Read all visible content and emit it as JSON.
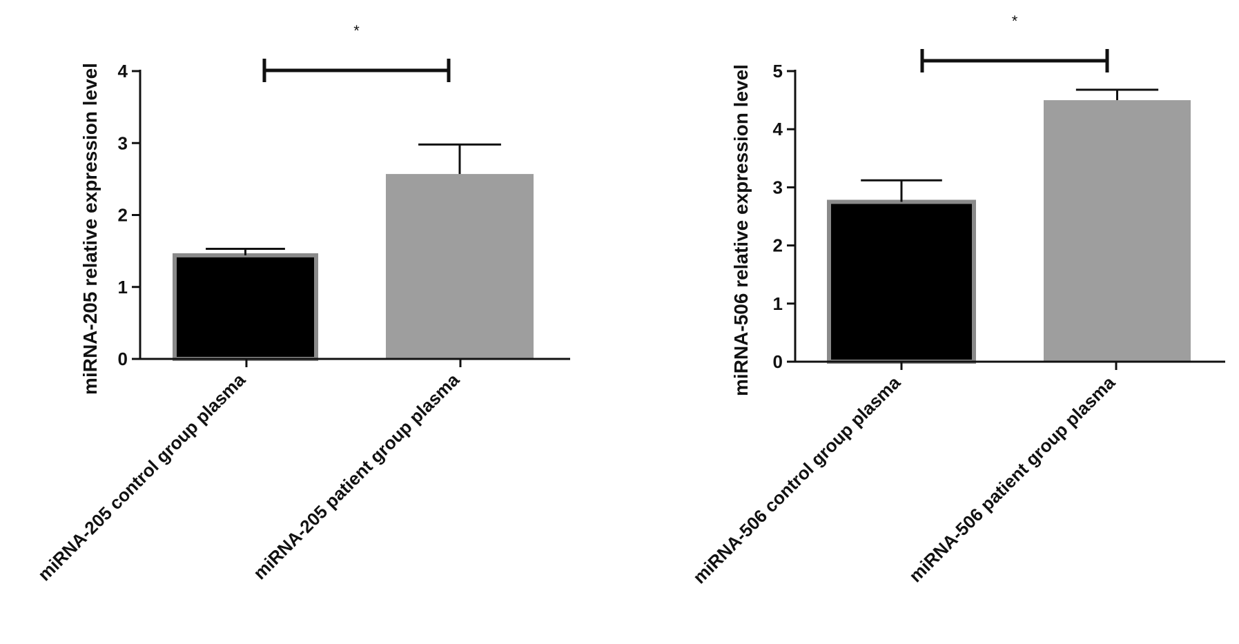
{
  "chart_data": [
    {
      "type": "bar",
      "categories": [
        "miRNA-205  control group plasma",
        "miRNA-205 patient group plasma"
      ],
      "values": [
        1.44,
        2.57
      ],
      "errors": [
        0.09,
        0.41
      ],
      "bar_colors": [
        "#000000",
        "#9e9e9e"
      ],
      "bar_outline": "#8a8a8a",
      "ylabel": "miRNA-205 relative expression level",
      "xlabel": "",
      "ylim": [
        0,
        4
      ],
      "yticks": [
        "0",
        "1",
        "2",
        "3",
        "4"
      ],
      "significance": {
        "label": "*",
        "between": [
          0,
          1
        ]
      }
    },
    {
      "type": "bar",
      "categories": [
        "miRNA-506 control group plasma",
        "miRNA-506 patient group plasma"
      ],
      "values": [
        2.75,
        4.5
      ],
      "errors": [
        0.37,
        0.18
      ],
      "bar_colors": [
        "#000000",
        "#9e9e9e"
      ],
      "bar_outline": "#8a8a8a",
      "ylabel": "miRNA-506  relative expression level",
      "xlabel": "",
      "ylim": [
        0,
        5
      ],
      "yticks": [
        "0",
        "1",
        "2",
        "3",
        "4",
        "5"
      ],
      "significance": {
        "label": "*",
        "between": [
          0,
          1
        ]
      }
    }
  ]
}
